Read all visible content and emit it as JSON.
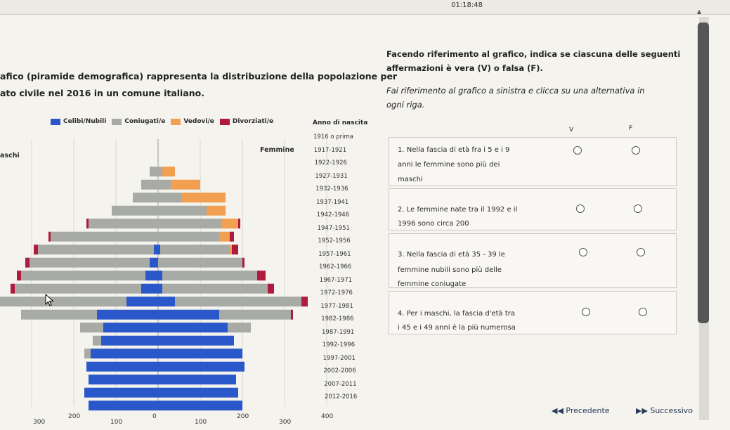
{
  "timer": "01:18:48",
  "intro": {
    "line1": "afico (piramide demografica) rappresenta la distribuzione della popolazione per",
    "line2": "ato civile nel 2016 in un comune italiano."
  },
  "question": {
    "line1": "Facendo riferimento al grafico, indica se ciascuna delle seguenti",
    "line2": "affermazioni è vera (V) o falsa (F).",
    "line3": "Fai riferimento al grafico a sinistra e clicca su una alternativa in",
    "line4": "ogni riga."
  },
  "columns": {
    "v": "V",
    "f": "F"
  },
  "statements": [
    {
      "line1": "1. Nella fascia di età fra i 5 e i 9",
      "line2": "anni le femmine sono più dei",
      "line3": "maschi"
    },
    {
      "line1": "2. Le femmine nate tra il 1992 e il",
      "line2": "1996 sono circa 200"
    },
    {
      "line1": "3. Nella fascia di età 35 - 39 le",
      "line2": "femmine nubili sono più delle",
      "line3": "femmine coniugate"
    },
    {
      "line1": "4. Per i maschi, la fascia d'età tra",
      "line2": "i 45 e i 49 anni è la più numerosa"
    }
  ],
  "nav": {
    "prev": "Precedente",
    "next": "Successivo"
  },
  "colors": {
    "celibi": "#2a57c9",
    "coniugati": "#a8aba5",
    "vedovi": "#f0a050",
    "divorziati": "#b01a3e"
  },
  "chart_data": {
    "type": "bar",
    "subtype": "population-pyramid",
    "legend": [
      "Celibi/Nubili",
      "Coniugati/e",
      "Vedovi/e",
      "Divorziati/e"
    ],
    "label_female": "Femmine",
    "label_male": "aschi",
    "ylabel": "Anno di nascita",
    "xticks": [
      "300",
      "200",
      "100",
      "0",
      "100",
      "200",
      "300",
      "400"
    ],
    "categories": [
      "1916 o prima",
      "1917-1921",
      "1922-1926",
      "1927-1931",
      "1932-1936",
      "1937-1941",
      "1942-1946",
      "1947-1951",
      "1952-1956",
      "1957-1961",
      "1962-1966",
      "1967-1971",
      "1972-1976",
      "1977-1981",
      "1982-1986",
      "1987-1991",
      "1992-1996",
      "1997-2001",
      "2002-2006",
      "2007-2011",
      "2012-2016"
    ],
    "female": {
      "celibi": [
        0,
        0,
        0,
        0,
        0,
        0,
        0,
        0,
        5,
        0,
        10,
        10,
        40,
        145,
        165,
        180,
        200,
        205,
        185,
        190,
        200
      ],
      "coniugati": [
        0,
        0,
        10,
        30,
        55,
        115,
        150,
        145,
        165,
        200,
        225,
        250,
        300,
        170,
        55,
        0,
        0,
        0,
        0,
        0,
        0
      ],
      "vedovi": [
        0,
        0,
        30,
        70,
        105,
        45,
        40,
        25,
        5,
        0,
        0,
        0,
        0,
        0,
        0,
        0,
        0,
        0,
        0,
        0,
        0
      ],
      "divorziati": [
        0,
        0,
        0,
        0,
        0,
        0,
        5,
        10,
        15,
        5,
        20,
        15,
        15,
        5,
        0,
        0,
        0,
        0,
        0,
        0,
        0
      ]
    },
    "male": {
      "celibi": [
        0,
        0,
        0,
        0,
        0,
        0,
        0,
        0,
        10,
        20,
        30,
        40,
        75,
        145,
        130,
        135,
        160,
        170,
        165,
        175,
        165
      ],
      "coniugati": [
        0,
        0,
        20,
        40,
        60,
        110,
        165,
        255,
        275,
        285,
        295,
        300,
        310,
        180,
        55,
        20,
        15,
        0,
        0,
        0,
        0
      ],
      "vedovi": [
        0,
        0,
        0,
        0,
        0,
        0,
        0,
        0,
        0,
        0,
        0,
        0,
        0,
        0,
        0,
        0,
        0,
        0,
        0,
        0,
        0
      ],
      "divorziati": [
        0,
        0,
        0,
        0,
        0,
        0,
        5,
        5,
        10,
        10,
        10,
        10,
        10,
        0,
        0,
        0,
        0,
        0,
        0,
        0,
        0
      ]
    }
  }
}
